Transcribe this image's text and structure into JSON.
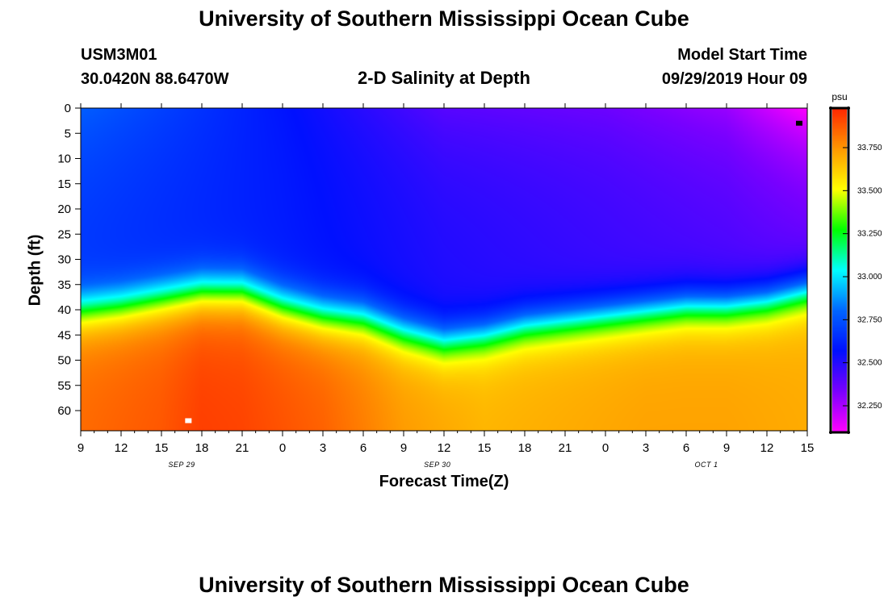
{
  "header": {
    "title_top": "University of Southern Mississippi Ocean Cube",
    "station_id": "USM3M01",
    "coords": "30.0420N 88.6470W",
    "plot_title": "2-D Salinity at Depth",
    "model_start_label": "Model Start Time",
    "model_start_value": "09/29/2019 Hour 09",
    "title_bottom": "University of Southern Mississippi Ocean Cube"
  },
  "chart_data": {
    "type": "heatmap",
    "title": "2-D Salinity at Depth",
    "xlabel": "Forecast Time(Z)",
    "ylabel": "Depth (ft)",
    "x_hours_range": [
      0,
      54
    ],
    "y_depth_range_ft": [
      0,
      64
    ],
    "x_ticks": [
      {
        "h": 0,
        "label": "9"
      },
      {
        "h": 3,
        "label": "12"
      },
      {
        "h": 6,
        "label": "15"
      },
      {
        "h": 9,
        "label": "18"
      },
      {
        "h": 12,
        "label": "21"
      },
      {
        "h": 15,
        "label": "0"
      },
      {
        "h": 18,
        "label": "3"
      },
      {
        "h": 21,
        "label": "6"
      },
      {
        "h": 24,
        "label": "9"
      },
      {
        "h": 27,
        "label": "12"
      },
      {
        "h": 30,
        "label": "15"
      },
      {
        "h": 33,
        "label": "18"
      },
      {
        "h": 36,
        "label": "21"
      },
      {
        "h": 39,
        "label": "0"
      },
      {
        "h": 42,
        "label": "3"
      },
      {
        "h": 45,
        "label": "6"
      },
      {
        "h": 48,
        "label": "9"
      },
      {
        "h": 51,
        "label": "12"
      },
      {
        "h": 54,
        "label": "15"
      }
    ],
    "date_labels": [
      {
        "h": 7.5,
        "label": "SEP 29"
      },
      {
        "h": 26.5,
        "label": "SEP 30"
      },
      {
        "h": 46.5,
        "label": "OCT 1"
      }
    ],
    "y_ticks": [
      0,
      5,
      10,
      15,
      20,
      25,
      30,
      35,
      40,
      45,
      50,
      55,
      60
    ],
    "colorbar": {
      "unit": "psu",
      "range": [
        32.1,
        33.975
      ],
      "ticks": [
        {
          "value": 32.25,
          "label": "32.250"
        },
        {
          "value": 32.5,
          "label": "32.500"
        },
        {
          "value": 32.75,
          "label": "32.750"
        },
        {
          "value": 33.0,
          "label": "33.000"
        },
        {
          "value": 33.25,
          "label": "33.250"
        },
        {
          "value": 33.5,
          "label": "33.500"
        },
        {
          "value": 33.75,
          "label": "33.750"
        }
      ]
    },
    "field_model": {
      "surface_psu": [
        {
          "h": 0,
          "v": 32.78
        },
        {
          "h": 15,
          "v": 32.58
        },
        {
          "h": 27,
          "v": 32.4
        },
        {
          "h": 39,
          "v": 32.36
        },
        {
          "h": 48,
          "v": 32.28
        },
        {
          "h": 54,
          "v": 32.1
        }
      ],
      "interior_psu": [
        {
          "h": 0,
          "v": 32.66
        },
        {
          "h": 15,
          "v": 32.6
        },
        {
          "h": 27,
          "v": 32.52
        },
        {
          "h": 39,
          "v": 32.47
        },
        {
          "h": 48,
          "v": 32.44
        },
        {
          "h": 54,
          "v": 32.42
        }
      ],
      "thermocline_center_ft": [
        {
          "h": 0,
          "v": 39
        },
        {
          "h": 3,
          "v": 38
        },
        {
          "h": 6,
          "v": 36.5
        },
        {
          "h": 9,
          "v": 35
        },
        {
          "h": 12,
          "v": 35
        },
        {
          "h": 15,
          "v": 38
        },
        {
          "h": 18,
          "v": 40
        },
        {
          "h": 21,
          "v": 41
        },
        {
          "h": 24,
          "v": 44
        },
        {
          "h": 27,
          "v": 46
        },
        {
          "h": 30,
          "v": 45
        },
        {
          "h": 33,
          "v": 43
        },
        {
          "h": 36,
          "v": 42
        },
        {
          "h": 39,
          "v": 41
        },
        {
          "h": 42,
          "v": 40
        },
        {
          "h": 45,
          "v": 39
        },
        {
          "h": 48,
          "v": 39
        },
        {
          "h": 51,
          "v": 38
        },
        {
          "h": 54,
          "v": 36
        }
      ],
      "thermocline_width_ft": 5.5,
      "bottom_psu": [
        {
          "h": 0,
          "v": 33.84
        },
        {
          "h": 6,
          "v": 33.88
        },
        {
          "h": 9,
          "v": 33.93
        },
        {
          "h": 12,
          "v": 33.92
        },
        {
          "h": 18,
          "v": 33.86
        },
        {
          "h": 24,
          "v": 33.74
        },
        {
          "h": 30,
          "v": 33.68
        },
        {
          "h": 36,
          "v": 33.7
        },
        {
          "h": 42,
          "v": 33.72
        },
        {
          "h": 48,
          "v": 33.72
        },
        {
          "h": 54,
          "v": 33.7
        }
      ]
    },
    "markers": [
      {
        "h": 8,
        "depth": 62,
        "color": "#ffffff"
      },
      {
        "h": 53.4,
        "depth": 3,
        "color": "#000000"
      }
    ],
    "colors": {
      "ramp": [
        "#ff00ff",
        "#7a00ff",
        "#0010ff",
        "#0066ff",
        "#00ffff",
        "#00ff00",
        "#ffff00",
        "#ff9900",
        "#ff2800"
      ]
    }
  }
}
